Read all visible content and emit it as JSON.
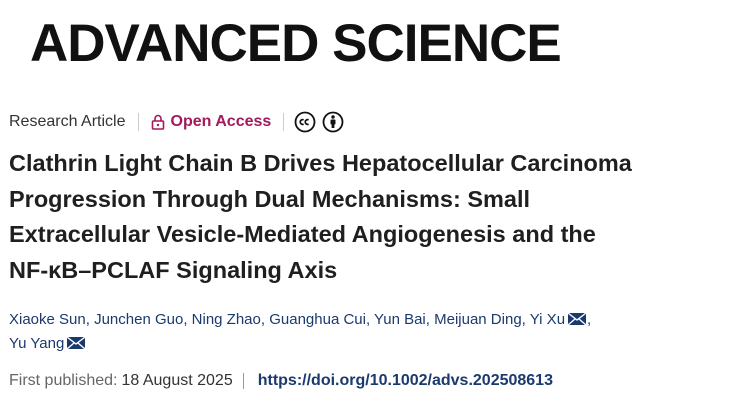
{
  "journal": "ADVANCED SCIENCE",
  "article_type": "Research Article",
  "access": "Open Access",
  "title_lines": [
    "Clathrin Light Chain B Drives Hepatocellular Carcinoma",
    "Progression Through Dual Mechanisms: Small",
    "Extracellular Vesicle-Mediated Angiogenesis and the",
    "NF-κB–PCLAF Signaling Axis"
  ],
  "authors": [
    {
      "name": "Xiaoke Sun",
      "corresponding": false
    },
    {
      "name": "Junchen Guo",
      "corresponding": false
    },
    {
      "name": "Ning Zhao",
      "corresponding": false
    },
    {
      "name": "Guanghua Cui",
      "corresponding": false
    },
    {
      "name": "Yun Bai",
      "corresponding": false
    },
    {
      "name": "Meijuan Ding",
      "corresponding": false
    },
    {
      "name": "Yi Xu",
      "corresponding": true
    },
    {
      "name": "Yu Yang",
      "corresponding": true
    }
  ],
  "author_separator": ",",
  "authors_lines": [
    7,
    1
  ],
  "published_label": "First published:",
  "published_date": "18 August 2025",
  "doi": "https://doi.org/10.1002/advs.202508613"
}
